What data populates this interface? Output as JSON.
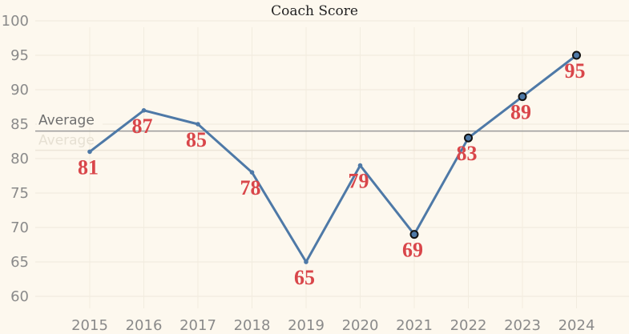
{
  "chart_data": {
    "type": "line",
    "title": "Coach Score",
    "x": [
      "2015",
      "2016",
      "2017",
      "2018",
      "2019",
      "2020",
      "2021",
      "2022",
      "2023",
      "2024"
    ],
    "values": [
      81,
      87,
      85,
      78,
      65,
      79,
      69,
      83,
      89,
      95
    ],
    "data_labels": [
      "81",
      "87",
      "85",
      "78",
      "65",
      "79",
      "69",
      "83",
      "89",
      "95"
    ],
    "highlighted_points": [
      "2021",
      "2022",
      "2023",
      "2024"
    ],
    "ylim": [
      58,
      101
    ],
    "yticks": [
      60,
      65,
      70,
      75,
      80,
      85,
      90,
      95,
      100
    ],
    "reference_line": {
      "label": "Average",
      "value": 84
    },
    "grid": true,
    "colors": {
      "line": "#4e79a7",
      "label": "#d9464a",
      "reference": "#9a9a9a",
      "background": "#fdf8ee"
    }
  }
}
